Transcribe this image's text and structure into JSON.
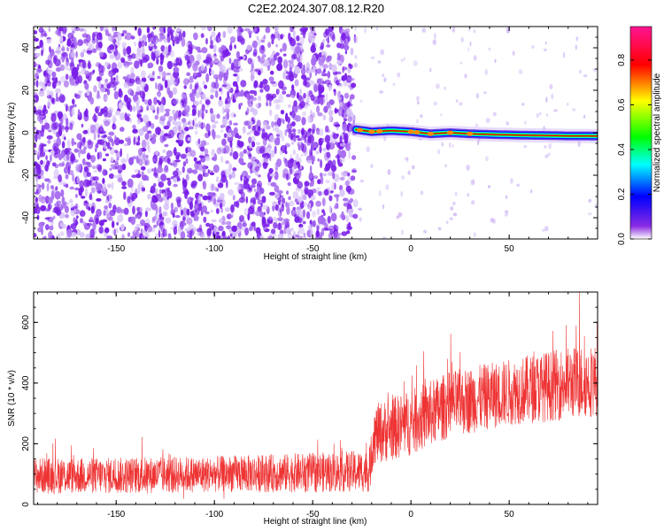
{
  "figure": {
    "title": "C2E2.2024.307.08.12.R20"
  },
  "chart_data": [
    {
      "type": "heatmap",
      "panel": "top",
      "xlabel": "Height of straight line (km)",
      "ylabel": "Frequency (Hz)",
      "xlim": [
        -192,
        95
      ],
      "ylim": [
        -50,
        50
      ],
      "xticks": [
        -150,
        -100,
        -50,
        0,
        50
      ],
      "yticks": [
        -40,
        -20,
        0,
        20,
        40
      ],
      "colorbar": {
        "label": "Normalized spectral amplitude",
        "range": [
          0,
          0.95
        ],
        "ticks": [
          0.0,
          0.2,
          0.4,
          0.6,
          0.8
        ],
        "colormap": [
          "#ffffff",
          "#8a2be2",
          "#0000ff",
          "#00ffff",
          "#00ff00",
          "#ffff00",
          "#ff0000",
          "#ff1493"
        ]
      },
      "regions": [
        {
          "x_range": [
            -192,
            -28
          ],
          "description": "broadband noise",
          "amplitude_range": [
            0.0,
            0.1
          ],
          "color": "#7a1fe8"
        },
        {
          "x_range": [
            -28,
            95
          ],
          "description": "narrow carrier line near 0 Hz",
          "amplitude_range": [
            0.3,
            0.95
          ],
          "frequency": -1
        }
      ],
      "carrier_track": {
        "x": [
          -28,
          -20,
          -10,
          0,
          10,
          20,
          30,
          40,
          50,
          60,
          70,
          80,
          90,
          95
        ],
        "y": [
          1.5,
          0.5,
          1.0,
          0.5,
          -0.5,
          0.0,
          -0.5,
          -0.8,
          -1.0,
          -1.2,
          -1.3,
          -1.5,
          -1.5,
          -1.6
        ]
      }
    },
    {
      "type": "line",
      "panel": "bottom",
      "xlabel": "Height of straight line (km)",
      "ylabel": "SNR (10 * v/v)",
      "xlim": [
        -192,
        95
      ],
      "ylim": [
        0,
        700
      ],
      "xticks": [
        -150,
        -100,
        -50,
        0,
        50
      ],
      "yticks": [
        0,
        200,
        400,
        600
      ],
      "series": [
        {
          "color": "#ee3333",
          "x": [
            -192,
            -150,
            -100,
            -50,
            -21,
            -19,
            0,
            20,
            50,
            80,
            95
          ],
          "y_mean": [
            95,
            95,
            100,
            105,
            110,
            230,
            270,
            330,
            370,
            400,
            410
          ],
          "y_spread": [
            60,
            60,
            60,
            65,
            70,
            100,
            110,
            110,
            110,
            120,
            120
          ],
          "y_peak": 700
        }
      ]
    }
  ]
}
